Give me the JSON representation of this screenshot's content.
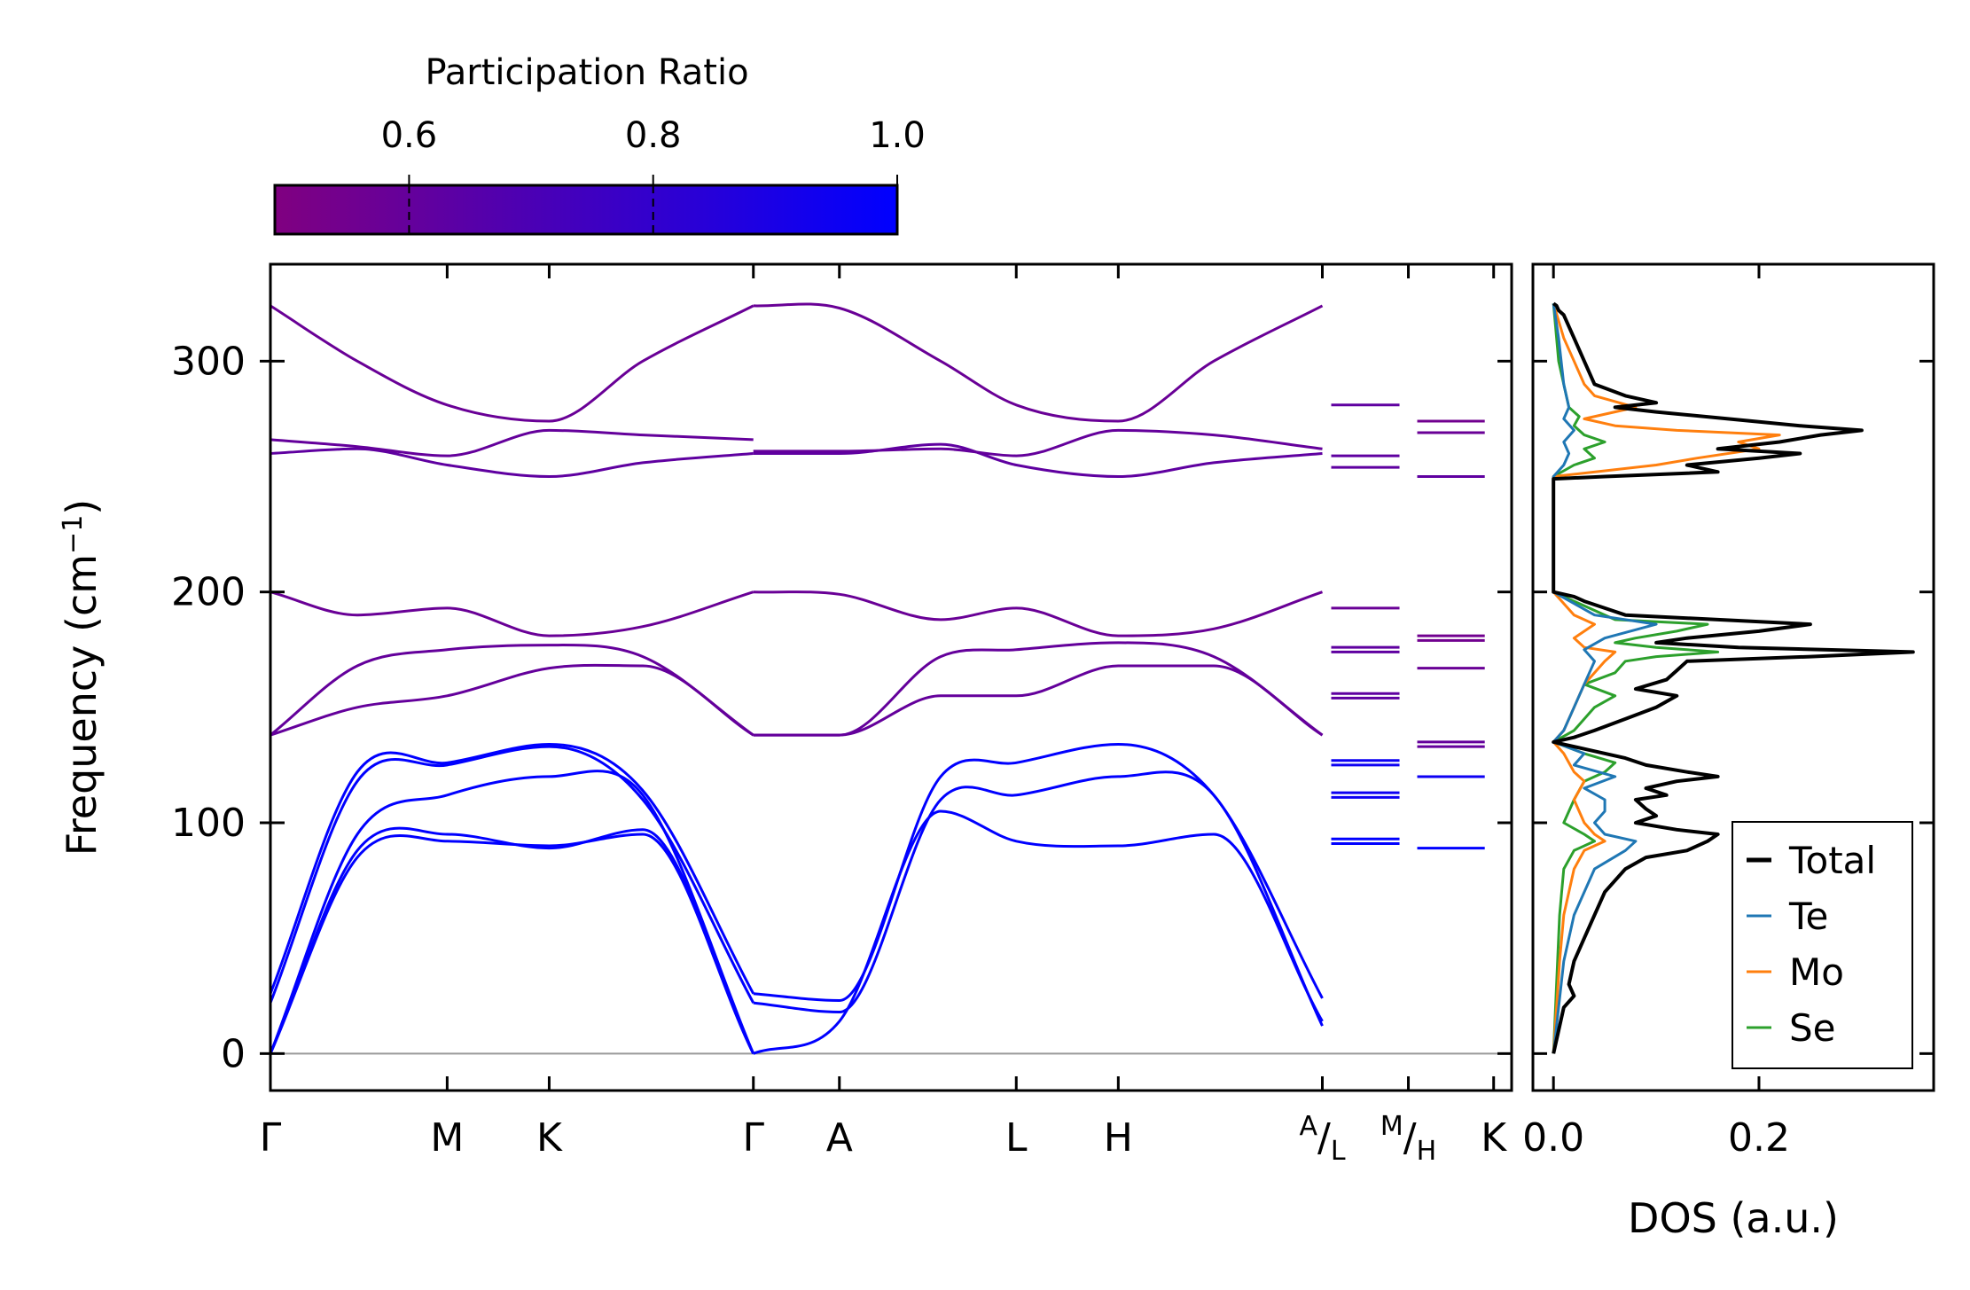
{
  "chart_data": {
    "type": "line",
    "title": "",
    "colorbar": {
      "label": "Participation Ratio",
      "range": [
        0.49,
        1.0
      ],
      "ticks": [
        "0.6",
        "0.8",
        "1.0"
      ],
      "tick_values": [
        0.6,
        0.8,
        1.0
      ],
      "colors": [
        "#800080",
        "#0000ff"
      ]
    },
    "band_panel": {
      "ylabel": "Frequency (cm",
      "ylabel_sup": "−1",
      "ylabel_tail": ")",
      "ylim": [
        -16,
        342
      ],
      "yticks": [
        "0",
        "100",
        "200",
        "300"
      ],
      "ytick_values": [
        0,
        100,
        200,
        300
      ],
      "path_labels": [
        "Γ",
        "M",
        "K",
        "Γ",
        "A",
        "L",
        "H",
        "K"
      ],
      "path_split_labels": [
        {
          "a": "A",
          "b": "L"
        },
        {
          "a": "M",
          "b": "H"
        }
      ],
      "path_positions": [
        0,
        0.1424,
        0.2246,
        0.3891,
        0.4584,
        0.6009,
        0.6831,
        0.8475,
        0.9168,
        0.9855
      ],
      "segments": [
        [
          0,
          0.3891
        ],
        [
          0.3891,
          0.8475
        ]
      ],
      "short_segments": [
        [
          0.8475,
          0.9168
        ],
        [
          0.9168,
          0.9855
        ]
      ],
      "acoustic_branches": [
        {
          "name": "acoustic-1",
          "pr": 1.0,
          "x": [
            0,
            0.07,
            0.1424,
            0.2246,
            0.3,
            0.3891
          ],
          "y": [
            0,
            85,
            92,
            90,
            95,
            0
          ]
        },
        {
          "name": "acoustic-2",
          "pr": 1.0,
          "x": [
            0,
            0.07,
            0.1424,
            0.2246,
            0.3,
            0.3891
          ],
          "y": [
            0,
            88,
            95,
            89,
            97,
            0
          ]
        },
        {
          "name": "acoustic-3",
          "pr": 1.0,
          "x": [
            0,
            0.07,
            0.1424,
            0.2246,
            0.3,
            0.3891
          ],
          "y": [
            0,
            95,
            112,
            120,
            112,
            0
          ]
        },
        {
          "name": "acoustic-4",
          "pr": 1.0,
          "x": [
            0,
            0.07,
            0.1424,
            0.2246,
            0.3,
            0.3891
          ],
          "y": [
            22,
            118,
            125,
            133,
            110,
            22
          ]
        },
        {
          "name": "acoustic-5",
          "pr": 1.0,
          "x": [
            0,
            0.07,
            0.1424,
            0.2246,
            0.3,
            0.3891
          ],
          "y": [
            26,
            122,
            126,
            134,
            114,
            26
          ]
        },
        {
          "name": "acoustic-6",
          "pr": 1.0,
          "x": [
            0.3891,
            0.4584,
            0.54,
            0.6009,
            0.6831,
            0.76,
            0.8475
          ],
          "y": [
            0,
            14,
            105,
            92,
            90,
            95,
            14
          ]
        },
        {
          "name": "acoustic-7",
          "pr": 1.0,
          "x": [
            0.3891,
            0.4584,
            0.54,
            0.6009,
            0.6831,
            0.76,
            0.8475
          ],
          "y": [
            22,
            18,
            110,
            112,
            120,
            112,
            12
          ]
        },
        {
          "name": "acoustic-8",
          "pr": 1.0,
          "x": [
            0.3891,
            0.4584,
            0.54,
            0.6009,
            0.6831,
            0.76,
            0.8475
          ],
          "y": [
            26,
            23,
            120,
            126,
            134,
            112,
            24
          ]
        }
      ],
      "optical_branches": [
        {
          "name": "optical-1",
          "pr": 0.6,
          "x": [
            0,
            0.07,
            0.1424,
            0.2246,
            0.3,
            0.3891
          ],
          "y": [
            138,
            150,
            155,
            167,
            168,
            138
          ]
        },
        {
          "name": "optical-2",
          "pr": 0.6,
          "x": [
            0,
            0.07,
            0.1424,
            0.2246,
            0.3,
            0.3891
          ],
          "y": [
            138,
            168,
            175,
            177,
            172,
            138
          ]
        },
        {
          "name": "optical-3",
          "pr": 0.58,
          "x": [
            0,
            0.07,
            0.1424,
            0.2246,
            0.3,
            0.3891
          ],
          "y": [
            200,
            190,
            193,
            181,
            185,
            200
          ]
        },
        {
          "name": "optical-4",
          "pr": 0.62,
          "x": [
            0,
            0.07,
            0.1424,
            0.2246,
            0.3,
            0.3891
          ],
          "y": [
            260,
            262,
            255,
            250,
            256,
            260
          ]
        },
        {
          "name": "optical-5",
          "pr": 0.6,
          "x": [
            0,
            0.07,
            0.1424,
            0.2246,
            0.3,
            0.3891
          ],
          "y": [
            266,
            263,
            259,
            270,
            268,
            266
          ]
        },
        {
          "name": "optical-6",
          "pr": 0.58,
          "x": [
            0,
            0.07,
            0.1424,
            0.2246,
            0.3,
            0.3891
          ],
          "y": [
            324,
            300,
            281,
            274,
            300,
            324
          ]
        },
        {
          "name": "optical-7",
          "pr": 0.6,
          "x": [
            0.3891,
            0.4584,
            0.54,
            0.6009,
            0.6831,
            0.76,
            0.8475
          ],
          "y": [
            138,
            138,
            155,
            155,
            168,
            168,
            138
          ]
        },
        {
          "name": "optical-8",
          "pr": 0.6,
          "x": [
            0.3891,
            0.4584,
            0.54,
            0.6009,
            0.6831,
            0.76,
            0.8475
          ],
          "y": [
            138,
            138,
            172,
            175,
            178,
            172,
            138
          ]
        },
        {
          "name": "optical-9",
          "pr": 0.58,
          "x": [
            0.3891,
            0.4584,
            0.54,
            0.6009,
            0.6831,
            0.76,
            0.8475
          ],
          "y": [
            200,
            199,
            188,
            193,
            181,
            184,
            200
          ]
        },
        {
          "name": "optical-10",
          "pr": 0.62,
          "x": [
            0.3891,
            0.4584,
            0.54,
            0.6009,
            0.6831,
            0.76,
            0.8475
          ],
          "y": [
            260,
            260,
            264,
            255,
            250,
            256,
            260
          ]
        },
        {
          "name": "optical-11",
          "pr": 0.6,
          "x": [
            0.3891,
            0.4584,
            0.54,
            0.6009,
            0.6831,
            0.76,
            0.8475
          ],
          "y": [
            261,
            261,
            262,
            259,
            270,
            268,
            262
          ]
        },
        {
          "name": "optical-12",
          "pr": 0.58,
          "x": [
            0.3891,
            0.4584,
            0.54,
            0.6009,
            0.6831,
            0.76,
            0.8475
          ],
          "y": [
            324,
            323,
            300,
            281,
            274,
            300,
            324
          ]
        }
      ],
      "flat_branches": [
        {
          "seg": 0,
          "pr": 1.0,
          "y": 91
        },
        {
          "seg": 0,
          "pr": 1.0,
          "y": 93
        },
        {
          "seg": 0,
          "pr": 0.95,
          "y": 111
        },
        {
          "seg": 0,
          "pr": 0.95,
          "y": 113
        },
        {
          "seg": 0,
          "pr": 0.95,
          "y": 125
        },
        {
          "seg": 0,
          "pr": 0.95,
          "y": 127
        },
        {
          "seg": 0,
          "pr": 0.62,
          "y": 154
        },
        {
          "seg": 0,
          "pr": 0.62,
          "y": 156
        },
        {
          "seg": 0,
          "pr": 0.62,
          "y": 174
        },
        {
          "seg": 0,
          "pr": 0.62,
          "y": 176
        },
        {
          "seg": 0,
          "pr": 0.58,
          "y": 193
        },
        {
          "seg": 0,
          "pr": 0.62,
          "y": 254
        },
        {
          "seg": 0,
          "pr": 0.62,
          "y": 259
        },
        {
          "seg": 0,
          "pr": 0.62,
          "y": 281
        },
        {
          "seg": 1,
          "pr": 1.0,
          "y": 89
        },
        {
          "seg": 1,
          "pr": 0.95,
          "y": 120
        },
        {
          "seg": 1,
          "pr": 0.6,
          "y": 133
        },
        {
          "seg": 1,
          "pr": 0.6,
          "y": 135
        },
        {
          "seg": 1,
          "pr": 0.58,
          "y": 167
        },
        {
          "seg": 1,
          "pr": 0.55,
          "y": 179
        },
        {
          "seg": 1,
          "pr": 0.55,
          "y": 181
        },
        {
          "seg": 1,
          "pr": 0.62,
          "y": 250
        },
        {
          "seg": 1,
          "pr": 0.58,
          "y": 269
        },
        {
          "seg": 1,
          "pr": 0.55,
          "y": 274
        }
      ]
    },
    "dos_panel": {
      "xlabel": "DOS (a.u.)",
      "xlim": [
        -0.02,
        0.37
      ],
      "xticks": [
        "0.0",
        "0.2"
      ],
      "xtick_values": [
        0.0,
        0.2
      ],
      "legend": {
        "position": "lower-right"
      },
      "series": [
        {
          "name": "Total",
          "color": "#000000",
          "freq": [
            0,
            10,
            20,
            25,
            30,
            40,
            50,
            60,
            70,
            80,
            85,
            88,
            92,
            95,
            97,
            100,
            103,
            106,
            110,
            112,
            115,
            118,
            120,
            122,
            125,
            128,
            132,
            135,
            137,
            140,
            145,
            150,
            155,
            158,
            162,
            166,
            170,
            172,
            174,
            176,
            178,
            180,
            183,
            186,
            188,
            190,
            193,
            196,
            198,
            200,
            205,
            230,
            249,
            250,
            252,
            255,
            258,
            260,
            262,
            265,
            268,
            270,
            272,
            275,
            278,
            280,
            282,
            285,
            290,
            300,
            310,
            320,
            322,
            324,
            325
          ],
          "value": [
            0.0,
            0.005,
            0.01,
            0.02,
            0.015,
            0.02,
            0.03,
            0.04,
            0.05,
            0.07,
            0.09,
            0.13,
            0.15,
            0.16,
            0.12,
            0.08,
            0.1,
            0.09,
            0.08,
            0.11,
            0.09,
            0.12,
            0.16,
            0.13,
            0.09,
            0.07,
            0.03,
            0.0,
            0.02,
            0.04,
            0.07,
            0.1,
            0.12,
            0.08,
            0.11,
            0.12,
            0.13,
            0.25,
            0.35,
            0.18,
            0.1,
            0.13,
            0.2,
            0.25,
            0.16,
            0.07,
            0.05,
            0.03,
            0.02,
            0.0,
            0.0,
            0.0,
            0.0,
            0.05,
            0.16,
            0.13,
            0.2,
            0.24,
            0.16,
            0.22,
            0.26,
            0.3,
            0.24,
            0.17,
            0.1,
            0.06,
            0.1,
            0.07,
            0.04,
            0.03,
            0.02,
            0.01,
            0.005,
            0.003,
            0.0
          ]
        },
        {
          "name": "Te",
          "color": "#1f77b4",
          "freq": [
            0,
            20,
            40,
            60,
            80,
            88,
            92,
            95,
            100,
            105,
            110,
            115,
            120,
            125,
            130,
            135,
            140,
            150,
            160,
            170,
            175,
            180,
            186,
            190,
            195,
            200,
            230,
            250,
            255,
            260,
            265,
            270,
            275,
            280,
            290,
            310,
            325
          ],
          "value": [
            0.0,
            0.005,
            0.01,
            0.02,
            0.04,
            0.07,
            0.08,
            0.05,
            0.04,
            0.05,
            0.05,
            0.03,
            0.06,
            0.02,
            0.03,
            0.0,
            0.01,
            0.02,
            0.03,
            0.04,
            0.03,
            0.05,
            0.1,
            0.04,
            0.02,
            0.0,
            0.0,
            0.0,
            0.01,
            0.015,
            0.01,
            0.02,
            0.01,
            0.015,
            0.01,
            0.005,
            0.0
          ]
        },
        {
          "name": "Mo",
          "color": "#ff7f0e",
          "freq": [
            0,
            20,
            40,
            60,
            80,
            88,
            92,
            95,
            100,
            110,
            118,
            122,
            130,
            135,
            140,
            150,
            160,
            170,
            174,
            176,
            180,
            186,
            190,
            200,
            230,
            250,
            255,
            258,
            262,
            265,
            268,
            270,
            272,
            275,
            280,
            285,
            290,
            300,
            310,
            325
          ],
          "value": [
            0.0,
            0.003,
            0.006,
            0.01,
            0.02,
            0.03,
            0.05,
            0.04,
            0.03,
            0.02,
            0.03,
            0.02,
            0.01,
            0.0,
            0.01,
            0.02,
            0.03,
            0.05,
            0.06,
            0.03,
            0.02,
            0.04,
            0.02,
            0.0,
            0.0,
            0.0,
            0.1,
            0.14,
            0.2,
            0.18,
            0.22,
            0.12,
            0.06,
            0.03,
            0.08,
            0.04,
            0.03,
            0.02,
            0.01,
            0.0
          ]
        },
        {
          "name": "Se",
          "color": "#2ca02c",
          "freq": [
            0,
            20,
            40,
            60,
            80,
            88,
            92,
            95,
            100,
            110,
            118,
            122,
            126,
            130,
            135,
            140,
            150,
            155,
            160,
            165,
            170,
            172,
            174,
            176,
            178,
            180,
            183,
            186,
            188,
            192,
            196,
            200,
            230,
            250,
            255,
            258,
            262,
            265,
            268,
            272,
            276,
            280,
            290,
            300,
            325
          ],
          "value": [
            0.0,
            0.002,
            0.004,
            0.006,
            0.01,
            0.02,
            0.04,
            0.03,
            0.01,
            0.02,
            0.03,
            0.05,
            0.06,
            0.03,
            0.0,
            0.02,
            0.04,
            0.06,
            0.03,
            0.06,
            0.07,
            0.1,
            0.16,
            0.1,
            0.06,
            0.08,
            0.12,
            0.15,
            0.06,
            0.04,
            0.02,
            0.0,
            0.0,
            0.0,
            0.02,
            0.04,
            0.03,
            0.05,
            0.03,
            0.02,
            0.025,
            0.015,
            0.01,
            0.005,
            0.0
          ]
        }
      ]
    }
  }
}
